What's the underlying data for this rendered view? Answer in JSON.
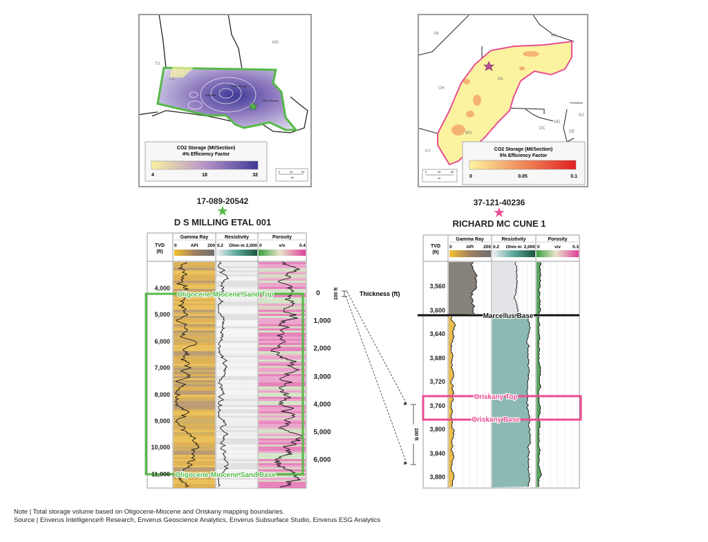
{
  "left_map": {
    "states": [
      "TX",
      "LA",
      "MS"
    ],
    "cities": [
      "Lafayette",
      "Baton Rouge",
      "New Orleans"
    ],
    "legend_title": "CO2 Storage (Mt/Section)",
    "legend_subtitle": "4% Efficiency Factor",
    "legend_ticks": [
      "4",
      "18",
      "32"
    ],
    "legend_colors": [
      "#f8f3a0",
      "#b894c8",
      "#3d3a96"
    ],
    "scale_ticks": [
      "0",
      "25",
      "50"
    ],
    "scale_unit": "mi",
    "boundary_color": "#55b947"
  },
  "right_map": {
    "states": [
      "MI",
      "NY",
      "OH",
      "PA",
      "NJ",
      "MD",
      "DC",
      "DE",
      "WV",
      "KY"
    ],
    "cities": [
      "Philadelphia"
    ],
    "legend_title": "CO2 Storage (Mt/Section)",
    "legend_subtitle": "5% Efficiency Factor",
    "legend_ticks": [
      "0",
      "0.05",
      "0.1"
    ],
    "legend_colors": [
      "#fdf3a0",
      "#f08a5a",
      "#e02020"
    ],
    "scale_ticks": [
      "0",
      "40",
      "80"
    ],
    "scale_unit": "mi",
    "boundary_color": "#ea4b91"
  },
  "left_well": {
    "api": "17-089-20542",
    "name": "D S MILLING ETAL 001",
    "star_color": "#55b947",
    "tvd_label": "TVD",
    "tvd_unit": "(ft)",
    "tracks": [
      {
        "name": "Gamma Ray",
        "min": "0",
        "unit": "API",
        "max": "200"
      },
      {
        "name": "Resistivity",
        "min": "0.2",
        "unit": "Ohm·m",
        "max": "2,000"
      },
      {
        "name": "Porosity",
        "min": "0",
        "unit": "v/v",
        "max": "0.4"
      }
    ],
    "depths": [
      "4,000",
      "5,000",
      "6,000",
      "7,000",
      "8,000",
      "9,000",
      "10,000",
      "11,000"
    ],
    "top_label": "Oligocene-Miocene Sand Top",
    "base_label": "Oligocene-Miocene Sand Base"
  },
  "thickness": {
    "label": "Thickness (ft)",
    "ticks": [
      "0",
      "1,000",
      "2,000",
      "3,000",
      "4,000",
      "5,000",
      "6,000"
    ],
    "scale_small": "100 ft",
    "scale_large": "100 ft"
  },
  "right_well": {
    "api": "37-121-40236",
    "name": "RICHARD MC CUNE 1",
    "star_color": "#ea4b91",
    "tvd_label": "TVD",
    "tvd_unit": "(ft)",
    "tracks": [
      {
        "name": "Gamma Ray",
        "min": "0",
        "unit": "API",
        "max": "200"
      },
      {
        "name": "Resistivity",
        "min": "0.2",
        "unit": "Ohm·m",
        "max": "2,000"
      },
      {
        "name": "Porosity",
        "min": "0",
        "unit": "v/v",
        "max": "0.3"
      }
    ],
    "depths": [
      "3,560",
      "3,600",
      "3,640",
      "3,680",
      "3,720",
      "3,760",
      "3,800",
      "3,840",
      "3,880"
    ],
    "marker_label": "Marcellus Base",
    "top_label": "Oriskany Top",
    "base_label": "Oriskany Base"
  },
  "footer": {
    "note": "Note | Total storage volume based on Oligocene-Miocene and Oriskany mapping boundaries.",
    "source": "Source | Enverus Intelligence® Research, Enverus Geoscience Analytics, Enverus Subsurface Studio, Enverus ESG Analytics"
  }
}
